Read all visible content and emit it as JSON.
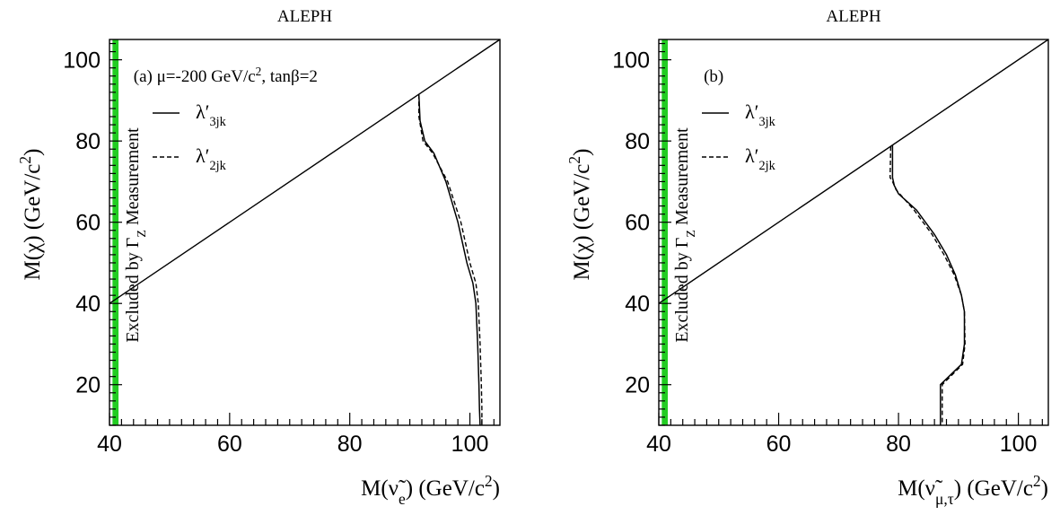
{
  "chart_data": [
    {
      "type": "line",
      "panel_label": "(a) μ=-200 GeV/c², tanβ=2",
      "title": "ALEPH",
      "xlabel": "M(ν̃e) (GeV/c²)",
      "ylabel": "M(χ) (GeV/c²)",
      "xlim": [
        40,
        105
      ],
      "ylim": [
        10,
        105
      ],
      "xticks": [
        40,
        60,
        80,
        100
      ],
      "yticks": [
        20,
        40,
        60,
        80,
        100
      ],
      "excluded_band": {
        "x": [
          40.5,
          41.5
        ],
        "label": "Excluded by ΓZ Measurement",
        "color": "#22cc22"
      },
      "kinematic_line": {
        "x": [
          40,
          105
        ],
        "y": [
          40,
          105
        ]
      },
      "series": [
        {
          "name": "λ'3jk",
          "style": "solid",
          "x": [
            91.5,
            91.7,
            92.5,
            94,
            96,
            98,
            99.5,
            100.5,
            101,
            101.3,
            101.5,
            101.6,
            101.7
          ],
          "y": [
            91.5,
            85,
            80,
            77,
            70,
            60,
            50,
            45,
            40,
            30,
            20,
            14,
            10
          ]
        },
        {
          "name": "λ'2jk",
          "style": "dashed",
          "x": [
            91.5,
            91.5,
            92.2,
            93.8,
            96.3,
            98.5,
            100,
            101,
            101.4,
            101.7,
            101.9,
            102,
            102
          ],
          "y": [
            91.5,
            86,
            80,
            77,
            70,
            60,
            50,
            45,
            40,
            30,
            20,
            14,
            10
          ]
        }
      ]
    },
    {
      "type": "line",
      "panel_label": "(b)",
      "title": "ALEPH",
      "xlabel": "M(ν̃μ,τ) (GeV/c²)",
      "ylabel": "M(χ) (GeV/c²)",
      "xlim": [
        40,
        105
      ],
      "ylim": [
        10,
        105
      ],
      "xticks": [
        40,
        60,
        80,
        100
      ],
      "yticks": [
        20,
        40,
        60,
        80,
        100
      ],
      "excluded_band": {
        "x": [
          40.5,
          41.5
        ],
        "label": "Excluded by ΓZ Measurement",
        "color": "#22cc22"
      },
      "kinematic_line": {
        "x": [
          40,
          105
        ],
        "y": [
          40,
          105
        ]
      },
      "series": [
        {
          "name": "λ'3jk",
          "style": "solid",
          "x": [
            79,
            79,
            79.3,
            80,
            83,
            86,
            88,
            89.5,
            90.5,
            91,
            91,
            90.5,
            87,
            87,
            87
          ],
          "y": [
            79,
            71,
            69,
            67,
            63,
            57,
            52,
            47,
            42,
            38,
            30,
            25,
            20,
            15,
            10
          ]
        },
        {
          "name": "λ'2jk",
          "style": "dashed",
          "x": [
            78.7,
            78.6,
            79,
            79.6,
            82.6,
            85.6,
            87.6,
            89.3,
            90.5,
            91,
            91.1,
            90.7,
            87.3,
            87.3,
            87.3
          ],
          "y": [
            78.7,
            71,
            70,
            68,
            63,
            57,
            52,
            47,
            42,
            38,
            30,
            25,
            20,
            15,
            10
          ]
        }
      ]
    }
  ],
  "legend_sample_labels": [
    "λ'3jk",
    "λ'2jk"
  ]
}
